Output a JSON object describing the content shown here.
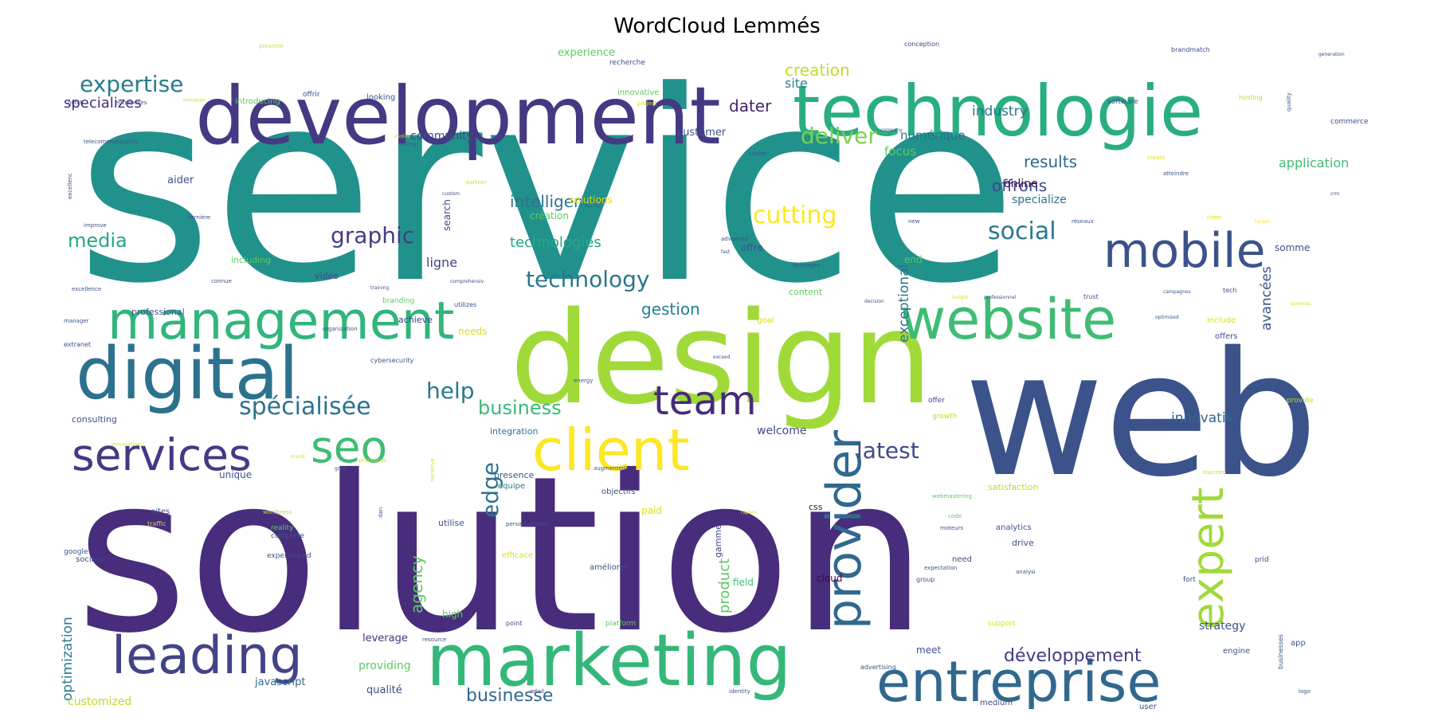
{
  "title": "WordCloud Lemmés",
  "words": [
    {
      "text": "service",
      "color": "#21918c"
    },
    {
      "text": "solution",
      "color": "#472d7b"
    },
    {
      "text": "web",
      "color": "#3b528b"
    },
    {
      "text": "design",
      "color": "#a0da39"
    },
    {
      "text": "development",
      "color": "#443983"
    },
    {
      "text": "technologie",
      "color": "#28ae80"
    },
    {
      "text": "marketing",
      "color": "#35b779"
    },
    {
      "text": "digital",
      "color": "#2c728e"
    },
    {
      "text": "management",
      "color": "#31b57b"
    },
    {
      "text": "entreprise",
      "color": "#31688e"
    },
    {
      "text": "website",
      "color": "#3fbc73"
    },
    {
      "text": "mobile",
      "color": "#3b528b"
    },
    {
      "text": "client",
      "color": "#fde725"
    },
    {
      "text": "leading",
      "color": "#414487"
    },
    {
      "text": "provider",
      "color": "#31688e"
    },
    {
      "text": "team",
      "color": "#472c7a"
    },
    {
      "text": "services",
      "color": "#443983"
    },
    {
      "text": "seo",
      "color": "#3fbc73"
    },
    {
      "text": "expert",
      "color": "#a0da39"
    },
    {
      "text": "expertise",
      "color": "#287c8e"
    },
    {
      "text": "cutting",
      "color": "#fde725"
    },
    {
      "text": "spécialisée",
      "color": "#2c728e"
    },
    {
      "text": "graphic",
      "color": "#433e85"
    },
    {
      "text": "social",
      "color": "#2a788e"
    },
    {
      "text": "edge",
      "color": "#2c728e"
    },
    {
      "text": "latest",
      "color": "#3e4a89"
    },
    {
      "text": "deliver",
      "color": "#7ad151"
    },
    {
      "text": "technology",
      "color": "#2a768e"
    },
    {
      "text": "business",
      "color": "#38b977"
    },
    {
      "text": "help",
      "color": "#2a788e"
    },
    {
      "text": "media",
      "color": "#22a884"
    },
    {
      "text": "intelligence",
      "color": "#2c728e"
    },
    {
      "text": "technologies",
      "color": "#22a884"
    },
    {
      "text": "gestion",
      "color": "#277f8e"
    },
    {
      "text": "développement",
      "color": "#443983"
    },
    {
      "text": "businesse",
      "color": "#31688e"
    },
    {
      "text": "creation",
      "color": "#bddf26"
    },
    {
      "text": "specializes",
      "color": "#472d7b"
    },
    {
      "text": "dater",
      "color": "#482173"
    },
    {
      "text": "offrons",
      "color": "#3e4a89"
    },
    {
      "text": "results",
      "color": "#31688e"
    },
    {
      "text": "industry",
      "color": "#2c728e"
    },
    {
      "text": "agency",
      "color": "#5ec962"
    },
    {
      "text": "exceptional",
      "color": "#2c728e"
    },
    {
      "text": "innovativ",
      "color": "#31688e"
    },
    {
      "text": "avancées",
      "color": "#3b528b"
    },
    {
      "text": "optimization",
      "color": "#2a788e"
    },
    {
      "text": "product",
      "color": "#5ec962"
    },
    {
      "text": "application",
      "color": "#3fbc73"
    },
    {
      "text": "ligne",
      "color": "#414487"
    },
    {
      "text": "site",
      "color": "#26828e"
    },
    {
      "text": "numérique",
      "color": "#2c728e"
    },
    {
      "text": "focus",
      "color": "#5ec962"
    },
    {
      "text": "strategy",
      "color": "#3b528b"
    },
    {
      "text": "welcome",
      "color": "#3e4a89"
    },
    {
      "text": "specialize",
      "color": "#2c728e"
    },
    {
      "text": "online",
      "color": "#440154"
    },
    {
      "text": "community",
      "color": "#3e4a89"
    },
    {
      "text": "customer",
      "color": "#3b528b"
    },
    {
      "text": "experience",
      "color": "#5ec962"
    },
    {
      "text": "providing",
      "color": "#5ec962"
    },
    {
      "text": "leverage",
      "color": "#46337e"
    },
    {
      "text": "javascript",
      "color": "#31688e"
    },
    {
      "text": "qualité",
      "color": "#3e4a89"
    },
    {
      "text": "customized",
      "color": "#b5de2b"
    },
    {
      "text": "aider",
      "color": "#3b528b"
    },
    {
      "text": "search",
      "color": "#3e4a89"
    },
    {
      "text": "création",
      "color": "#5ec962"
    },
    {
      "text": "solutions",
      "color": "#d8e219"
    },
    {
      "text": "offre",
      "color": "#3b528b"
    },
    {
      "text": "end",
      "color": "#5ec962"
    },
    {
      "text": "somme",
      "color": "#3b528b"
    },
    {
      "text": "field",
      "color": "#3fbc73"
    },
    {
      "text": "cloud",
      "color": "#440154"
    },
    {
      "text": "gamme",
      "color": "#3e4a89"
    },
    {
      "text": "including",
      "color": "#5ec962"
    },
    {
      "text": "video",
      "color": "#3e4a89"
    },
    {
      "text": "professional",
      "color": "#3b528b"
    },
    {
      "text": "achieve",
      "color": "#433e85"
    },
    {
      "text": "needs",
      "color": "#d8e219"
    },
    {
      "text": "consulting",
      "color": "#3b528b"
    },
    {
      "text": "integration",
      "color": "#2c728e"
    },
    {
      "text": "unique",
      "color": "#3b528b"
    },
    {
      "text": "presence",
      "color": "#3b528b"
    },
    {
      "text": "équipe",
      "color": "#2a788e"
    },
    {
      "text": "objectifs",
      "color": "#3b528b"
    },
    {
      "text": "utilise",
      "color": "#3b528b"
    },
    {
      "text": "paid",
      "color": "#d8e219"
    },
    {
      "text": "css",
      "color": "#440154"
    },
    {
      "text": "satisfaction",
      "color": "#b5de2b"
    },
    {
      "text": "analytics",
      "color": "#3b528b"
    },
    {
      "text": "drive",
      "color": "#3b528b"
    },
    {
      "text": "need",
      "color": "#3e4a89"
    },
    {
      "text": "meet",
      "color": "#3b528b"
    },
    {
      "text": "high",
      "color": "#5ec962"
    },
    {
      "text": "medium",
      "color": "#3e4a89"
    },
    {
      "text": "engine",
      "color": "#3b528b"
    },
    {
      "text": "app",
      "color": "#3b528b"
    },
    {
      "text": "user",
      "color": "#3b528b"
    },
    {
      "text": "sociaux",
      "color": "#3e4a89"
    },
    {
      "text": "améliorer",
      "color": "#3b528b"
    },
    {
      "text": "efficace",
      "color": "#d8e219"
    },
    {
      "text": "content",
      "color": "#5ec962"
    },
    {
      "text": "goal",
      "color": "#d8e219"
    },
    {
      "text": "include",
      "color": "#d8e219"
    },
    {
      "text": "offers",
      "color": "#3b528b"
    },
    {
      "text": "sites",
      "color": "#3b528b"
    },
    {
      "text": "traffic",
      "color": "#b5de2b"
    },
    {
      "text": "reality",
      "color": "#5ec962"
    },
    {
      "text": "complète",
      "color": "#3b528b"
    },
    {
      "text": "experienced",
      "color": "#3b528b"
    },
    {
      "text": "google",
      "color": "#3b528b"
    },
    {
      "text": "branding",
      "color": "#5ec962"
    },
    {
      "text": "cybersecurity",
      "color": "#3b528b"
    },
    {
      "text": "introducing",
      "color": "#5ec962"
    },
    {
      "text": "looking",
      "color": "#3b528b"
    },
    {
      "text": "innovative",
      "color": "#5ec962"
    },
    {
      "text": "software",
      "color": "#3b528b"
    },
    {
      "text": "commerce",
      "color": "#3b528b"
    },
    {
      "text": "offrir",
      "color": "#3e4a89"
    },
    {
      "text": "recherche",
      "color": "#3e4a89"
    },
    {
      "text": "conception",
      "color": "#3e4a89"
    },
    {
      "text": "brandmatch",
      "color": "#3e4a89"
    },
    {
      "text": "hosting",
      "color": "#b5de2b"
    },
    {
      "text": "fort",
      "color": "#3b528b"
    },
    {
      "text": "provide",
      "color": "#b5de2b"
    },
    {
      "text": "growth",
      "color": "#b5de2b"
    },
    {
      "text": "offer",
      "color": "#3e4a89"
    },
    {
      "text": "succeed",
      "color": "#b5de2b"
    },
    {
      "text": "advertising",
      "color": "#3b528b"
    },
    {
      "text": "platform",
      "color": "#5ec962"
    },
    {
      "text": "point",
      "color": "#3b528b"
    },
    {
      "text": "support",
      "color": "#d8e219"
    },
    {
      "text": "businesses",
      "color": "#3b528b"
    },
    {
      "text": "augmented",
      "color": "#3b528b"
    },
    {
      "text": "webmastering",
      "color": "#5ec962"
    },
    {
      "text": "code",
      "color": "#5ec962"
    },
    {
      "text": "moteurs",
      "color": "#3b528b"
    },
    {
      "text": "expectation",
      "color": "#3b528b"
    },
    {
      "text": "group",
      "color": "#3b528b"
    },
    {
      "text": "analysi",
      "color": "#3b528b"
    },
    {
      "text": "resource",
      "color": "#3e4a89"
    },
    {
      "text": "retail",
      "color": "#3b528b"
    },
    {
      "text": "identity",
      "color": "#3b528b"
    },
    {
      "text": "logo",
      "color": "#3b528b"
    },
    {
      "text": "prid",
      "color": "#3e4a89"
    },
    {
      "text": "personnalisées",
      "color": "#3b528b"
    },
    {
      "text": "wordpress",
      "color": "#b5de2b"
    },
    {
      "text": "dan",
      "color": "#3b528b"
    },
    {
      "text": "ourselve",
      "color": "#d8e219"
    },
    {
      "text": "processus",
      "color": "#d8e219"
    },
    {
      "text": "energy",
      "color": "#3b528b"
    },
    {
      "text": "exceed",
      "color": "#3b528b"
    },
    {
      "text": "rapers",
      "color": "#d8e219"
    },
    {
      "text": "grow",
      "color": "#3b528b"
    },
    {
      "text": "brand",
      "color": "#d8e219"
    },
    {
      "text": "innovation",
      "color": "#d8e219"
    },
    {
      "text": "extranet",
      "color": "#3b528b"
    },
    {
      "text": "organization",
      "color": "#3b528b"
    },
    {
      "text": "manager",
      "color": "#3b528b"
    },
    {
      "text": "excellence",
      "color": "#3b528b"
    },
    {
      "text": "connue",
      "color": "#3b528b"
    },
    {
      "text": "improve",
      "color": "#3b528b"
    },
    {
      "text": "dernière",
      "color": "#3b528b"
    },
    {
      "text": "excellenc",
      "color": "#3b528b"
    },
    {
      "text": "telecommunication",
      "color": "#3b528b"
    },
    {
      "text": "notch",
      "color": "#3b528b"
    },
    {
      "text": "entreprises",
      "color": "#3b528b"
    },
    {
      "text": "intranet",
      "color": "#d8e219"
    },
    {
      "text": "presente",
      "color": "#d8e219"
    },
    {
      "text": "evolve",
      "color": "#d8e219"
    },
    {
      "text": "making",
      "color": "#3b528b"
    },
    {
      "text": "custom",
      "color": "#3b528b"
    },
    {
      "text": "partner",
      "color": "#d8e219"
    },
    {
      "text": "project",
      "color": "#d8e219"
    },
    {
      "text": "company",
      "color": "#3b528b"
    },
    {
      "text": "conter",
      "color": "#3b528b"
    },
    {
      "text": "quality",
      "color": "#3b528b"
    },
    {
      "text": "create",
      "color": "#d8e219"
    },
    {
      "text": "atteindre",
      "color": "#3b528b"
    },
    {
      "text": "crm",
      "color": "#3b528b"
    },
    {
      "text": "créer",
      "color": "#d8e219"
    },
    {
      "text": "réseaux",
      "color": "#3b528b"
    },
    {
      "text": "target",
      "color": "#fde725"
    },
    {
      "text": "new",
      "color": "#3b528b"
    },
    {
      "text": "advanced",
      "color": "#3b528b"
    },
    {
      "text": "fast",
      "color": "#3b528b"
    },
    {
      "text": "leverages",
      "color": "#3b528b"
    },
    {
      "text": "decision",
      "color": "#3b528b"
    },
    {
      "text": "insight",
      "color": "#d8e219"
    },
    {
      "text": "professionnel",
      "color": "#3b528b"
    },
    {
      "text": "trust",
      "color": "#3b528b"
    },
    {
      "text": "tech",
      "color": "#3b528b"
    },
    {
      "text": "campagnes",
      "color": "#3b528b"
    },
    {
      "text": "sommes",
      "color": "#d8e219"
    },
    {
      "text": "optimized",
      "color": "#3b528b"
    },
    {
      "text": "utilizes",
      "color": "#3b528b"
    },
    {
      "text": "training",
      "color": "#3b528b"
    },
    {
      "text": "comprehensiv",
      "color": "#3b528b"
    },
    {
      "text": "generation",
      "color": "#3b528b"
    }
  ]
}
